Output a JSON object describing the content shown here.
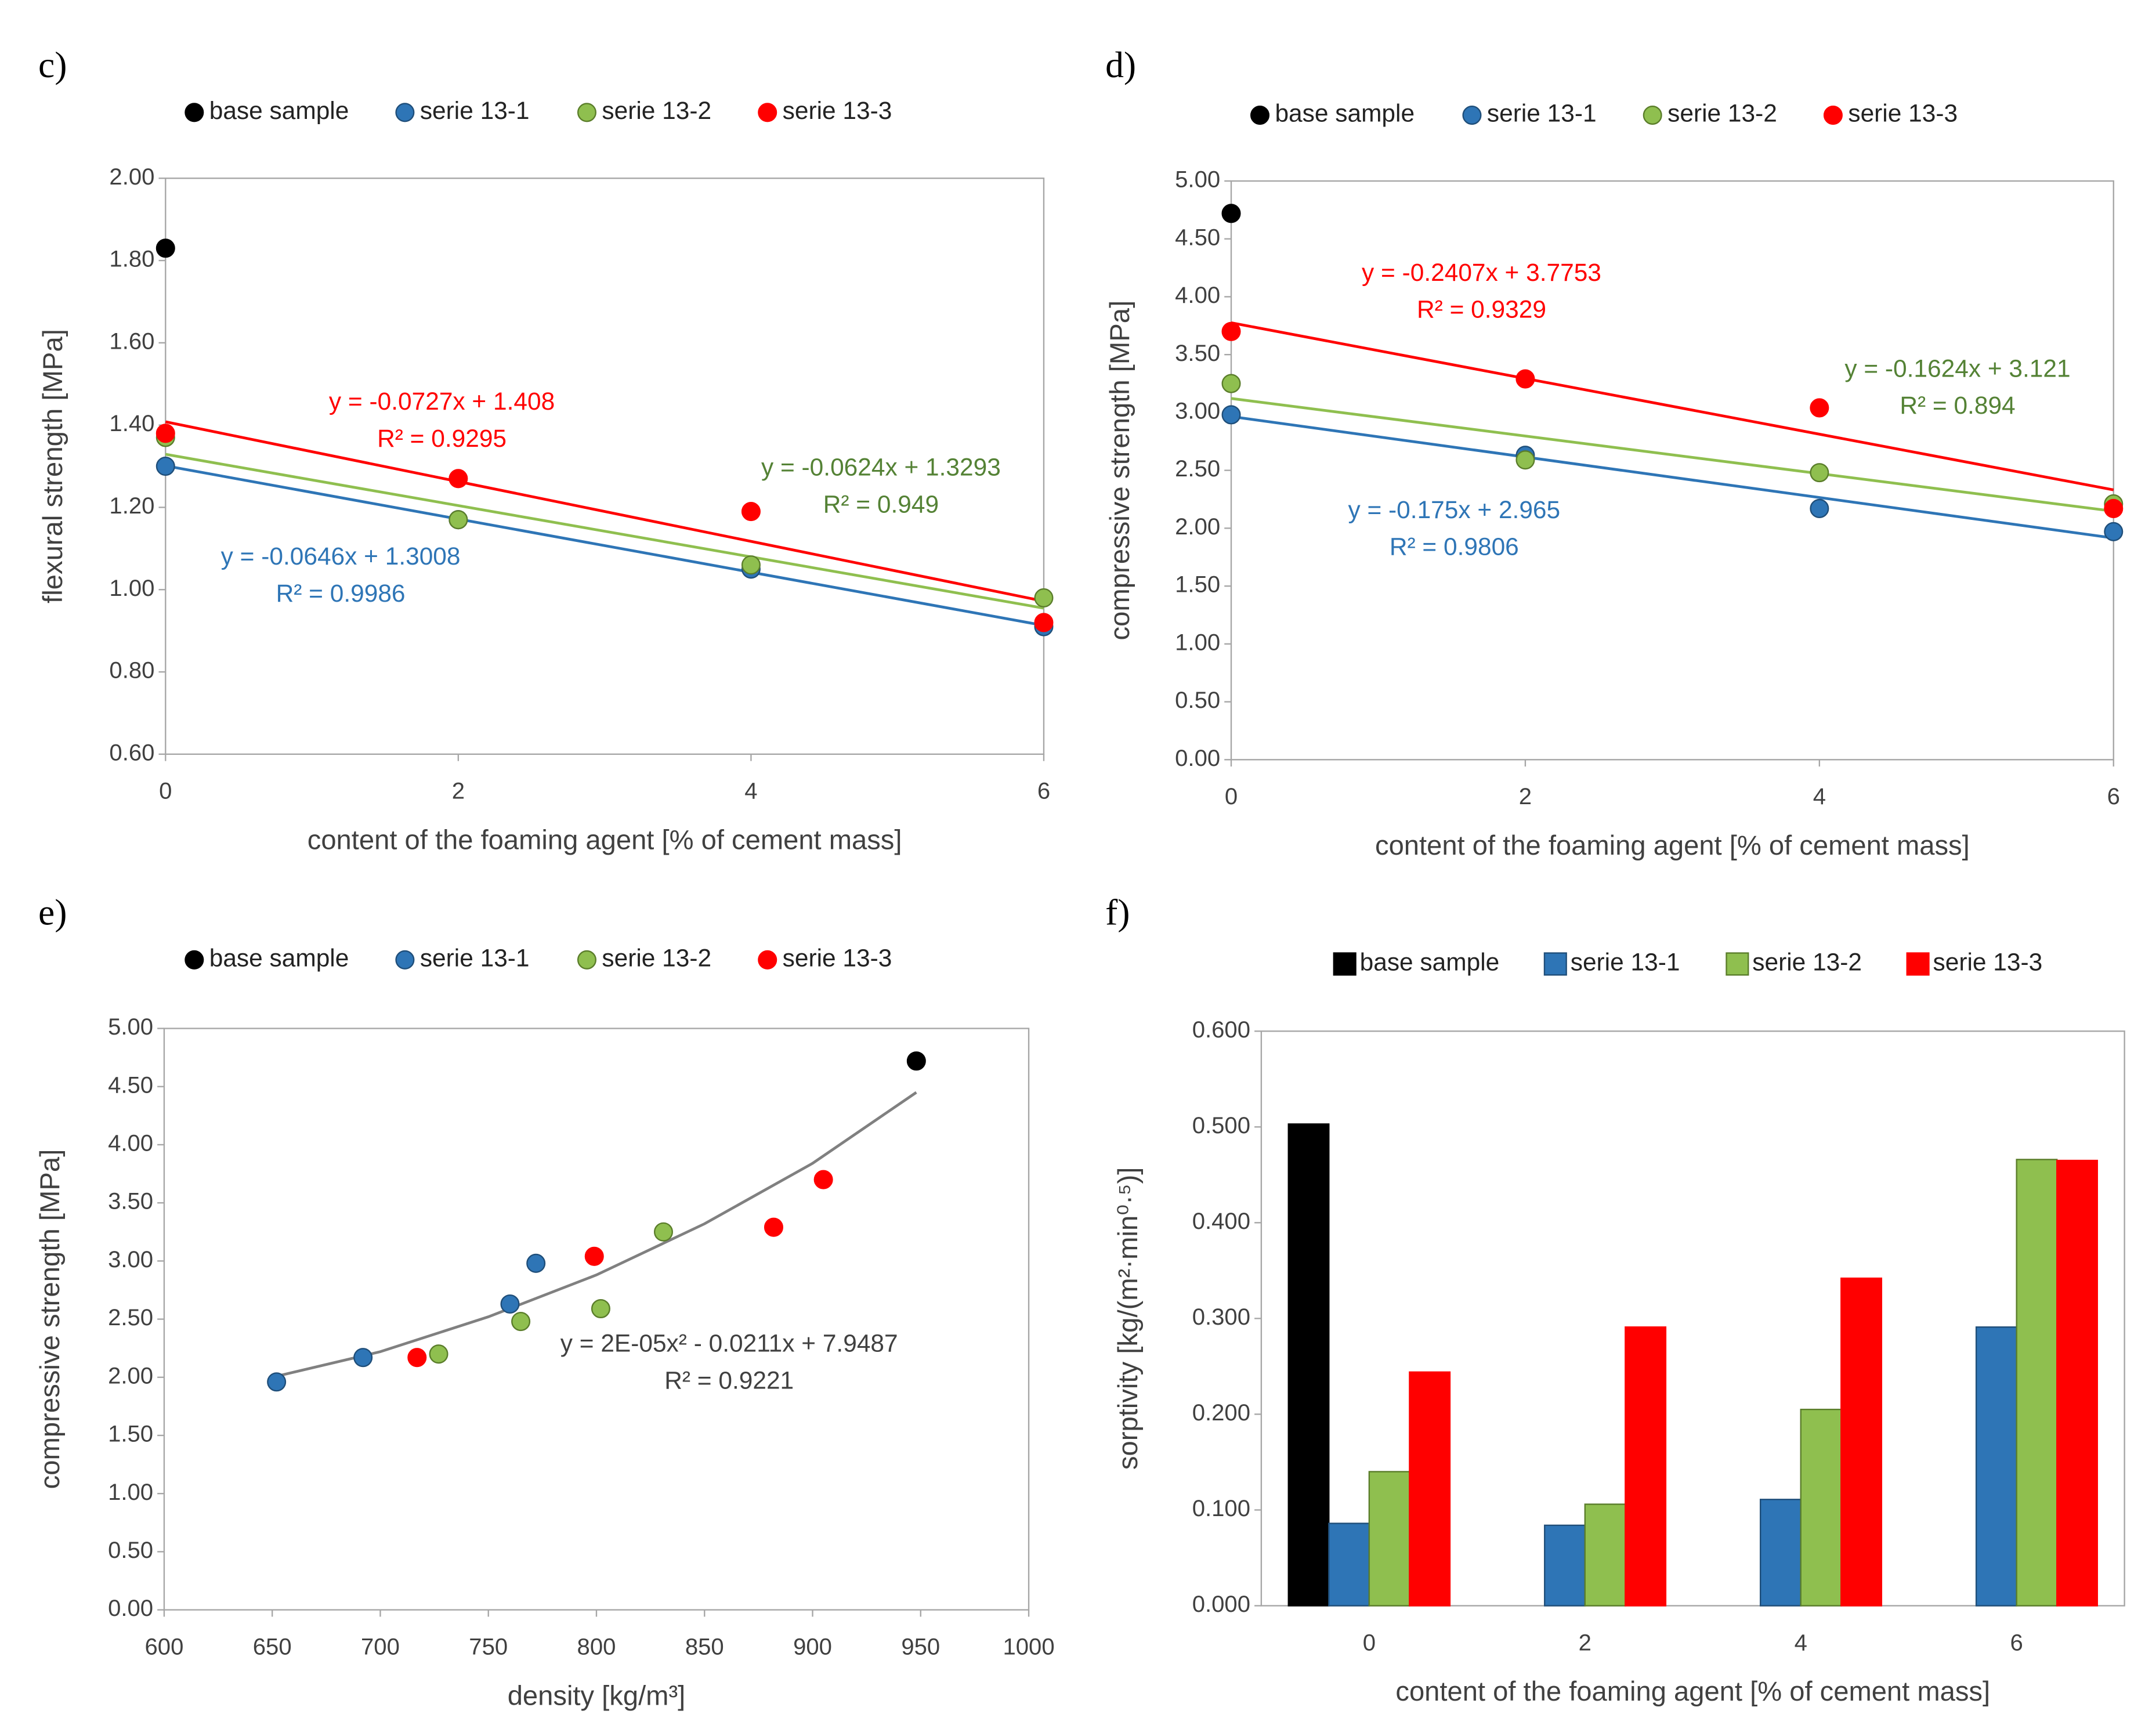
{
  "chart_data": [
    {
      "type": "scatter",
      "panel_label": "c)",
      "xlabel": "content of the foaming agent [% of cement mass]",
      "ylabel": "flexural strength [MPa]",
      "xlim": [
        0,
        6
      ],
      "xticks": [
        0,
        2,
        4,
        6
      ],
      "ylim": [
        0.6,
        2.0
      ],
      "yticks": [
        {
          "value": 0.6,
          "label": "0.60"
        },
        {
          "value": 0.8,
          "label": "0.80"
        },
        {
          "value": 1.0,
          "label": "1.00"
        },
        {
          "value": 1.2,
          "label": "1.20"
        },
        {
          "value": 1.4,
          "label": "1.40"
        },
        {
          "value": 1.6,
          "label": "1.60"
        },
        {
          "value": 1.8,
          "label": "1.80"
        },
        {
          "value": 2.0,
          "label": "2.00"
        }
      ],
      "series": [
        {
          "name": "base sample",
          "color": "#000000",
          "x": [
            0
          ],
          "values": [
            1.83
          ]
        },
        {
          "name": "serie 13-1",
          "color": "#2e75b6",
          "x": [
            0,
            2,
            4,
            6
          ],
          "values": [
            1.3,
            1.17,
            1.05,
            0.91
          ],
          "trendline": {
            "x": [
              0,
              6
            ],
            "values": [
              1.301,
              0.913
            ],
            "equation": "y = -0.0646x + 1.3008",
            "r2": "R² = 0.9986"
          }
        },
        {
          "name": "serie 13-2",
          "color": "#8fbf4f",
          "x": [
            0,
            2,
            4,
            6
          ],
          "values": [
            1.37,
            1.17,
            1.06,
            0.98
          ],
          "trendline": {
            "x": [
              0,
              6
            ],
            "values": [
              1.329,
              0.955
            ],
            "equation": "y = -0.0624x + 1.3293",
            "r2": "R² = 0.949"
          }
        },
        {
          "name": "serie 13-3",
          "color": "#ff0000",
          "x": [
            0,
            2,
            4,
            6
          ],
          "values": [
            1.38,
            1.27,
            1.19,
            0.92
          ],
          "trendline": {
            "x": [
              0,
              6
            ],
            "values": [
              1.408,
              0.972
            ],
            "equation": "y = -0.0727x + 1.408",
            "r2": "R² = 0.9295"
          }
        }
      ]
    },
    {
      "type": "scatter",
      "panel_label": "d)",
      "xlabel": "content of the foaming agent [% of cement mass]",
      "ylabel": "compressive strength [MPa]",
      "xlim": [
        0,
        6
      ],
      "xticks": [
        0,
        2,
        4,
        6
      ],
      "ylim": [
        0,
        5
      ],
      "yticks": [
        {
          "value": 0,
          "label": "0.00"
        },
        {
          "value": 0.5,
          "label": "0.50"
        },
        {
          "value": 1,
          "label": "1.00"
        },
        {
          "value": 1.5,
          "label": "1.50"
        },
        {
          "value": 2,
          "label": "2.00"
        },
        {
          "value": 2.5,
          "label": "2.50"
        },
        {
          "value": 3,
          "label": "3.00"
        },
        {
          "value": 3.5,
          "label": "3.50"
        },
        {
          "value": 4,
          "label": "4.00"
        },
        {
          "value": 4.5,
          "label": "4.50"
        },
        {
          "value": 5,
          "label": "5.00"
        }
      ],
      "series": [
        {
          "name": "base sample",
          "color": "#000000",
          "x": [
            0
          ],
          "values": [
            4.72
          ]
        },
        {
          "name": "serie 13-1",
          "color": "#2e75b6",
          "x": [
            0,
            2,
            4,
            6
          ],
          "values": [
            2.98,
            2.63,
            2.17,
            1.97
          ],
          "trendline": {
            "x": [
              0,
              6
            ],
            "values": [
              2.965,
              1.915
            ],
            "equation": "y = -0.175x + 2.965",
            "r2": "R² = 0.9806"
          }
        },
        {
          "name": "serie 13-2",
          "color": "#8fbf4f",
          "x": [
            0,
            2,
            4,
            6
          ],
          "values": [
            3.25,
            2.59,
            2.48,
            2.21
          ],
          "trendline": {
            "x": [
              0,
              6
            ],
            "values": [
              3.121,
              2.147
            ],
            "equation": "y = -0.1624x + 3.121",
            "r2": "R² = 0.894"
          }
        },
        {
          "name": "serie 13-3",
          "color": "#ff0000",
          "x": [
            0,
            2,
            4,
            6
          ],
          "values": [
            3.7,
            3.29,
            3.04,
            2.17
          ],
          "trendline": {
            "x": [
              0,
              6
            ],
            "values": [
              3.775,
              2.331
            ],
            "equation": "y = -0.2407x + 3.7753",
            "r2": "R² = 0.9329"
          }
        }
      ]
    },
    {
      "type": "scatter",
      "panel_label": "e)",
      "xlabel": "density [kg/m³]",
      "ylabel": "compressive strength [MPa]",
      "xlim": [
        600,
        1000
      ],
      "xticks": [
        600,
        650,
        700,
        750,
        800,
        850,
        900,
        950,
        1000
      ],
      "ylim": [
        0,
        5
      ],
      "yticks": [
        {
          "value": 0,
          "label": "0.00"
        },
        {
          "value": 0.5,
          "label": "0.50"
        },
        {
          "value": 1,
          "label": "1.00"
        },
        {
          "value": 1.5,
          "label": "1.50"
        },
        {
          "value": 2,
          "label": "2.00"
        },
        {
          "value": 2.5,
          "label": "2.50"
        },
        {
          "value": 3,
          "label": "3.00"
        },
        {
          "value": 3.5,
          "label": "3.50"
        },
        {
          "value": 4,
          "label": "4.00"
        },
        {
          "value": 4.5,
          "label": "4.50"
        },
        {
          "value": 5,
          "label": "5.00"
        }
      ],
      "series": [
        {
          "name": "base sample",
          "color": "#000000",
          "x": [
            948
          ],
          "values": [
            4.72
          ]
        },
        {
          "name": "serie 13-1",
          "color": "#2e75b6",
          "x": [
            652,
            692,
            760,
            772
          ],
          "values": [
            1.96,
            2.17,
            2.63,
            2.98
          ]
        },
        {
          "name": "serie 13-2",
          "color": "#8fbf4f",
          "x": [
            727,
            765,
            802,
            831
          ],
          "values": [
            2.2,
            2.48,
            2.59,
            3.25
          ]
        },
        {
          "name": "serie 13-3",
          "color": "#ff0000",
          "x": [
            717,
            799,
            882,
            905
          ],
          "values": [
            2.17,
            3.04,
            3.29,
            3.7
          ]
        }
      ],
      "trendline": {
        "color": "#808080",
        "x": [
          650,
          700,
          750,
          800,
          850,
          900,
          948
        ],
        "values": [
          2.0,
          2.22,
          2.52,
          2.88,
          3.32,
          3.84,
          4.45
        ],
        "equation": "y = 2E-05x² - 0.0211x + 7.9487",
        "r2": "R² = 0.9221"
      }
    },
    {
      "type": "bar",
      "panel_label": "f)",
      "xlabel": "content of the foaming agent [% of cement mass]",
      "ylabel": "sorptivity [kg/(m²·min⁰·⁵)]",
      "categories": [
        "0",
        "2",
        "4",
        "6"
      ],
      "ylim": [
        0,
        0.6
      ],
      "yticks": [
        {
          "value": 0,
          "label": "0.000"
        },
        {
          "value": 0.1,
          "label": "0.100"
        },
        {
          "value": 0.2,
          "label": "0.200"
        },
        {
          "value": 0.3,
          "label": "0.300"
        },
        {
          "value": 0.4,
          "label": "0.400"
        },
        {
          "value": 0.5,
          "label": "0.500"
        },
        {
          "value": 0.6,
          "label": "0.600"
        }
      ],
      "series": [
        {
          "name": "base sample",
          "color": "#000000",
          "values": [
            0.503,
            null,
            null,
            null
          ]
        },
        {
          "name": "serie 13-1",
          "color": "#2e75b6",
          "values": [
            0.086,
            0.084,
            0.111,
            0.291
          ]
        },
        {
          "name": "serie 13-2",
          "color": "#8fbf4f",
          "values": [
            0.14,
            0.106,
            0.205,
            0.466
          ]
        },
        {
          "name": "serie 13-3",
          "color": "#ff0000",
          "values": [
            0.244,
            0.291,
            0.342,
            0.465
          ]
        }
      ]
    }
  ]
}
